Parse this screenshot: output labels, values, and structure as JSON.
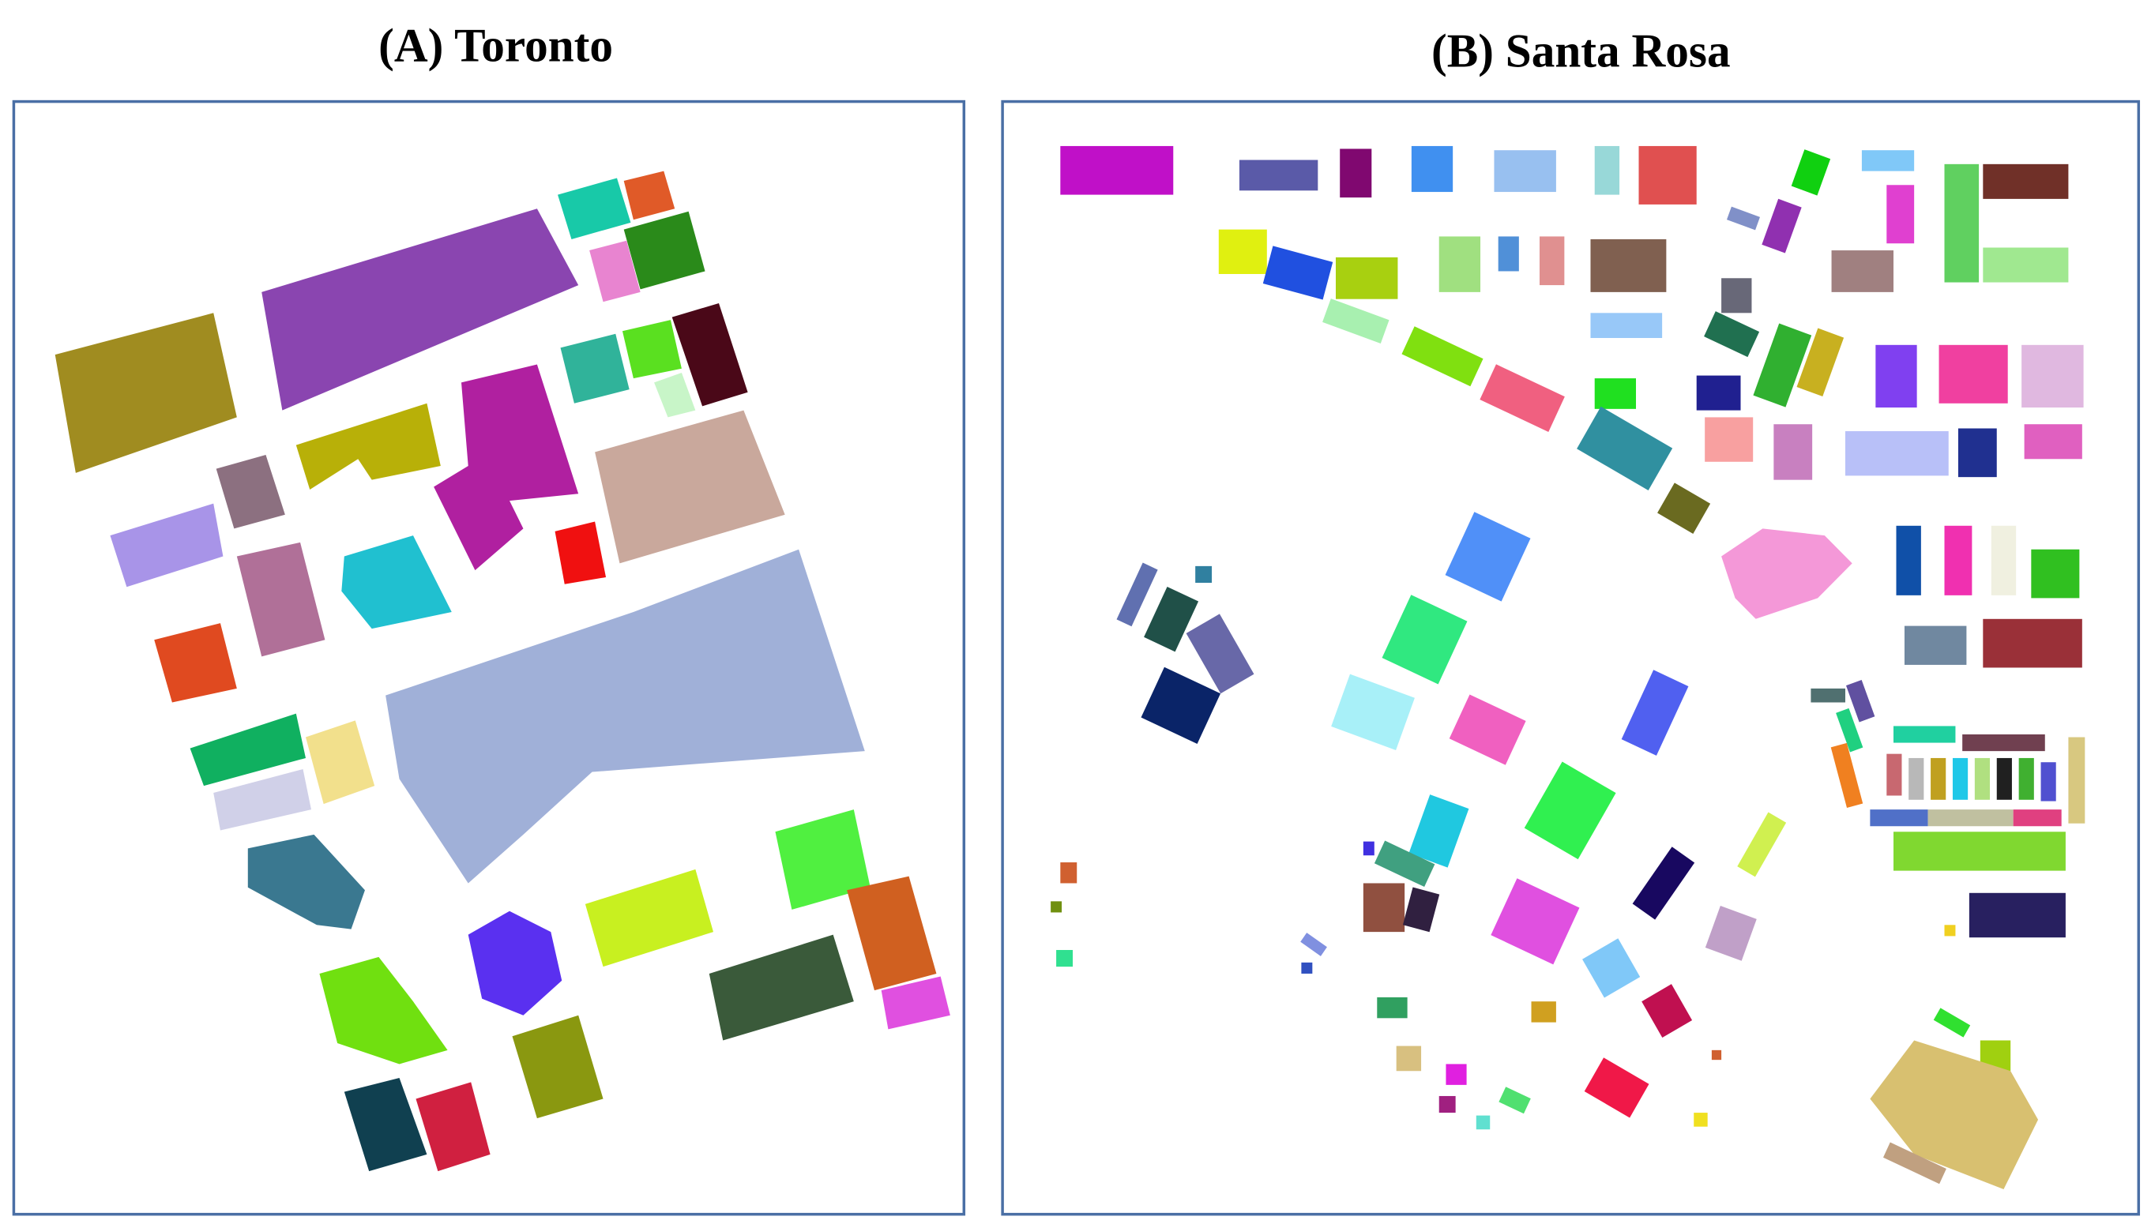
{
  "panels": [
    {
      "title": "(A) Toronto"
    },
    {
      "title": "(B) Santa Rosa"
    }
  ]
}
